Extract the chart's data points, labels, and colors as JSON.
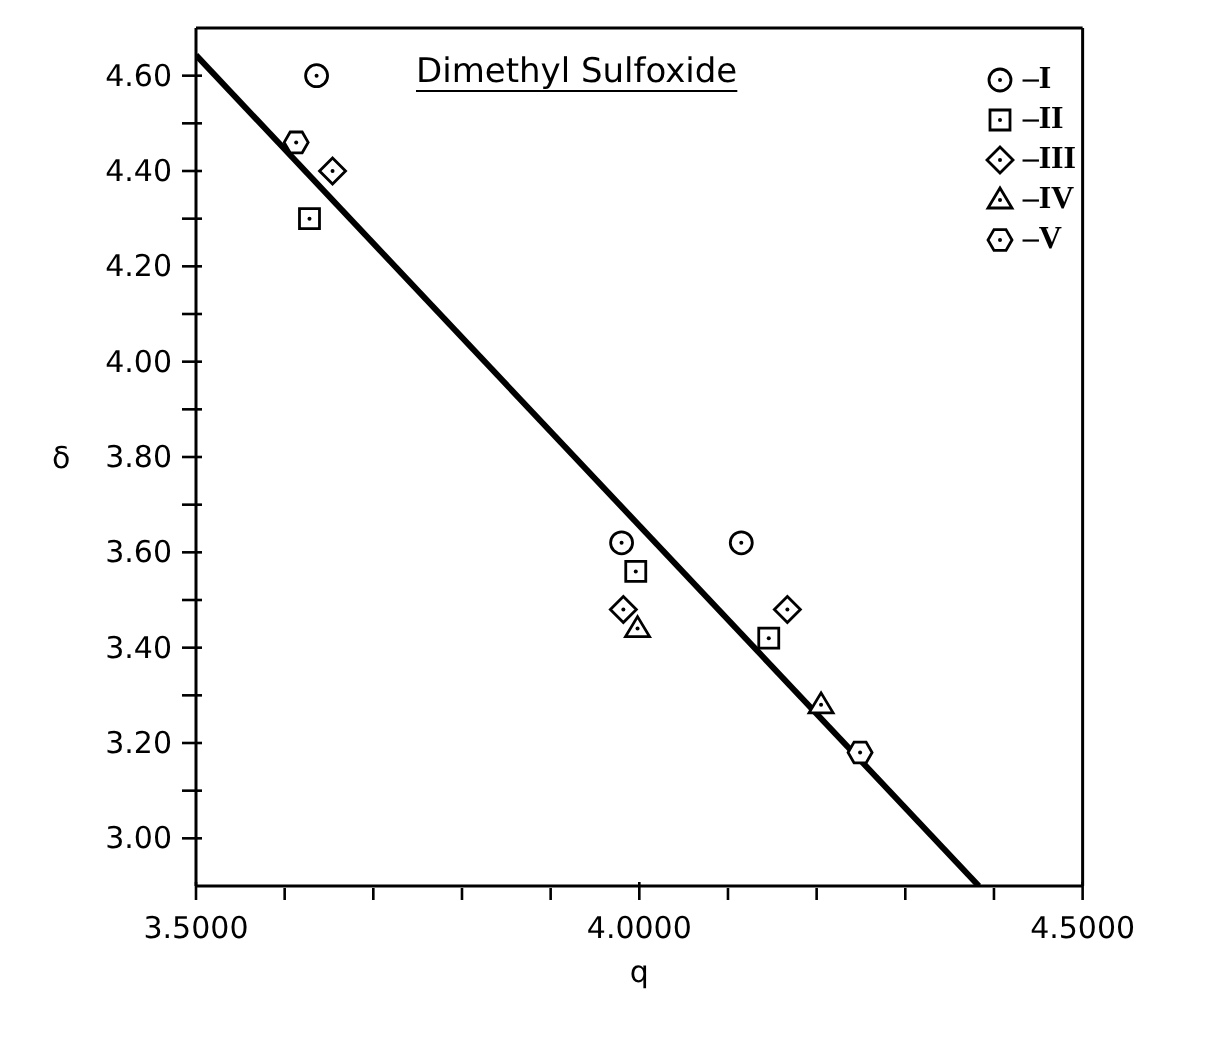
{
  "chart_data": {
    "type": "scatter",
    "title": "Dimethyl Sulfoxide",
    "xlabel": "q",
    "ylabel": "δ",
    "xlim": [
      3.5,
      4.5
    ],
    "ylim": [
      2.9,
      4.7
    ],
    "xticks": [
      {
        "value": 3.5,
        "label": "3.5000"
      },
      {
        "value": 3.6,
        "label": null
      },
      {
        "value": 3.7,
        "label": null
      },
      {
        "value": 3.8,
        "label": null
      },
      {
        "value": 3.9,
        "label": null
      },
      {
        "value": 4.0,
        "label": "4.0000"
      },
      {
        "value": 4.1,
        "label": null
      },
      {
        "value": 4.2,
        "label": null
      },
      {
        "value": 4.3,
        "label": null
      },
      {
        "value": 4.4,
        "label": null
      },
      {
        "value": 4.5,
        "label": "4.5000"
      }
    ],
    "yticks": [
      {
        "value": 3.0,
        "label": "3.00"
      },
      {
        "value": 3.1,
        "label": null
      },
      {
        "value": 3.2,
        "label": "3.20"
      },
      {
        "value": 3.3,
        "label": null
      },
      {
        "value": 3.4,
        "label": "3.40"
      },
      {
        "value": 3.5,
        "label": null
      },
      {
        "value": 3.6,
        "label": "3.60"
      },
      {
        "value": 3.7,
        "label": null
      },
      {
        "value": 3.8,
        "label": "3.80"
      },
      {
        "value": 3.9,
        "label": null
      },
      {
        "value": 4.0,
        "label": "4.00"
      },
      {
        "value": 4.1,
        "label": null
      },
      {
        "value": 4.2,
        "label": "4.20"
      },
      {
        "value": 4.3,
        "label": null
      },
      {
        "value": 4.4,
        "label": "4.40"
      },
      {
        "value": 4.5,
        "label": null
      },
      {
        "value": 4.6,
        "label": "4.60"
      }
    ],
    "legend": "top right",
    "series": [
      {
        "name": "–I",
        "color": "#000000",
        "marker": "circle",
        "x": [
          3.636,
          3.98,
          4.115
        ],
        "values": [
          4.6,
          3.62,
          3.62
        ]
      },
      {
        "name": "–II",
        "color": "#000000",
        "marker": "square",
        "x": [
          3.628,
          3.996,
          4.146
        ],
        "values": [
          4.3,
          3.56,
          3.42
        ]
      },
      {
        "name": "–III",
        "color": "#000000",
        "marker": "diamond",
        "x": [
          3.654,
          3.982,
          4.167
        ],
        "values": [
          4.4,
          3.48,
          3.48
        ]
      },
      {
        "name": "–IV",
        "color": "#000000",
        "marker": "triangle",
        "x": [
          3.998,
          4.205
        ],
        "values": [
          3.44,
          3.28
        ]
      },
      {
        "name": "–V",
        "color": "#000000",
        "x": [
          3.613,
          4.249
        ],
        "values": [
          4.46,
          3.18
        ]
      },
      {
        "type": "line",
        "color": "#000000",
        "marker": "none",
        "line_style": "solid",
        "x": [
          3.5,
          4.383
        ],
        "values": [
          4.643,
          2.9
        ]
      }
    ]
  }
}
